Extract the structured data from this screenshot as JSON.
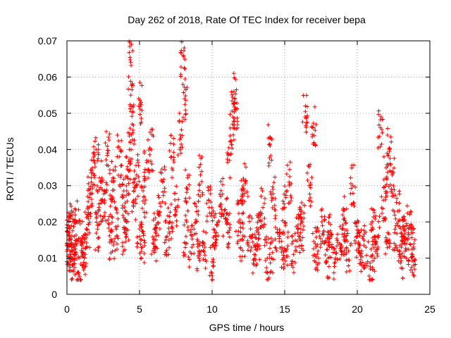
{
  "chart_data": {
    "type": "scatter",
    "title": "Day 262 of 2018, Rate Of TEC Index for receiver bepa",
    "xlabel": "GPS time / hours",
    "ylabel": "ROTI / TECUs",
    "xlim": [
      0,
      25
    ],
    "ylim": [
      0,
      0.07
    ],
    "x_ticks": [
      0,
      5,
      10,
      15,
      20,
      25
    ],
    "x_tick_labels": [
      "0",
      "5",
      "10",
      "15",
      "20",
      "25"
    ],
    "y_ticks": [
      0,
      0.01,
      0.02,
      0.03,
      0.04,
      0.05,
      0.06,
      0.07
    ],
    "y_tick_labels": [
      "0",
      "0.01",
      "0.02",
      "0.03",
      "0.04",
      "0.05",
      "0.06",
      "0.07"
    ],
    "grid": true,
    "marker": "+",
    "marker_color": "#ff0000",
    "series": [
      {
        "name": "ROTI",
        "x": [
          0.0,
          0.1,
          0.2,
          0.3,
          0.4,
          0.5,
          0.6,
          0.7,
          0.8,
          1.0,
          1.2,
          1.4,
          1.5,
          1.6,
          1.8,
          2.0,
          2.2,
          2.4,
          2.6,
          2.8,
          3.0,
          3.2,
          3.4,
          3.6,
          3.8,
          4.0,
          4.2,
          4.3,
          4.4,
          4.45,
          4.5,
          4.6,
          4.8,
          5.0,
          5.1,
          5.3,
          5.5,
          5.8,
          6.0,
          6.3,
          6.6,
          6.9,
          7.2,
          7.5,
          7.8,
          8.0,
          8.1,
          8.3,
          8.6,
          8.9,
          9.2,
          9.5,
          9.8,
          10.0,
          10.3,
          10.6,
          10.9,
          11.2,
          11.4,
          11.5,
          11.6,
          11.8,
          12.0,
          12.3,
          12.6,
          12.9,
          13.2,
          13.5,
          13.8,
          14.0,
          14.2,
          14.5,
          14.8,
          15.0,
          15.3,
          15.6,
          15.9,
          16.2,
          16.4,
          16.7,
          17.0,
          17.3,
          17.6,
          17.9,
          18.2,
          18.5,
          18.8,
          19.1,
          19.4,
          19.7,
          20.0,
          20.3,
          20.6,
          20.9,
          21.2,
          21.4,
          21.6,
          21.8,
          22.0,
          22.2,
          22.4,
          22.6,
          22.8,
          23.0,
          23.2,
          23.4,
          23.6,
          23.8,
          23.9,
          0.3,
          1.1,
          2.1,
          3.1,
          4.1,
          5.2,
          6.1,
          7.1,
          8.2,
          9.1,
          10.1,
          11.1,
          12.1,
          13.1,
          14.1,
          15.1,
          16.1,
          17.1,
          18.1,
          19.1,
          20.1,
          21.1,
          22.1,
          23.1
        ],
        "y": [
          0.014,
          0.019,
          0.012,
          0.019,
          0.008,
          0.016,
          0.011,
          0.02,
          0.006,
          0.015,
          0.01,
          0.018,
          0.022,
          0.029,
          0.033,
          0.04,
          0.024,
          0.031,
          0.026,
          0.039,
          0.022,
          0.031,
          0.018,
          0.038,
          0.027,
          0.017,
          0.032,
          0.04,
          0.055,
          0.069,
          0.047,
          0.026,
          0.033,
          0.016,
          0.053,
          0.027,
          0.037,
          0.04,
          0.015,
          0.022,
          0.031,
          0.016,
          0.038,
          0.024,
          0.044,
          0.066,
          0.054,
          0.029,
          0.013,
          0.02,
          0.033,
          0.013,
          0.024,
          0.009,
          0.017,
          0.027,
          0.021,
          0.037,
          0.047,
          0.056,
          0.051,
          0.02,
          0.026,
          0.031,
          0.016,
          0.011,
          0.018,
          0.024,
          0.01,
          0.041,
          0.029,
          0.017,
          0.013,
          0.024,
          0.031,
          0.011,
          0.018,
          0.021,
          0.049,
          0.03,
          0.046,
          0.012,
          0.019,
          0.009,
          0.016,
          0.01,
          0.014,
          0.021,
          0.012,
          0.03,
          0.016,
          0.012,
          0.013,
          0.007,
          0.01,
          0.016,
          0.046,
          0.026,
          0.032,
          0.04,
          0.033,
          0.018,
          0.023,
          0.01,
          0.016,
          0.014,
          0.019,
          0.011,
          0.014,
          0.012,
          0.011,
          0.018,
          0.015,
          0.02,
          0.013,
          0.017,
          0.02,
          0.016,
          0.012,
          0.018,
          0.017,
          0.015,
          0.014,
          0.01,
          0.012,
          0.017,
          0.014,
          0.016,
          0.015,
          0.014,
          0.018,
          0.017,
          0.016
        ]
      }
    ]
  }
}
